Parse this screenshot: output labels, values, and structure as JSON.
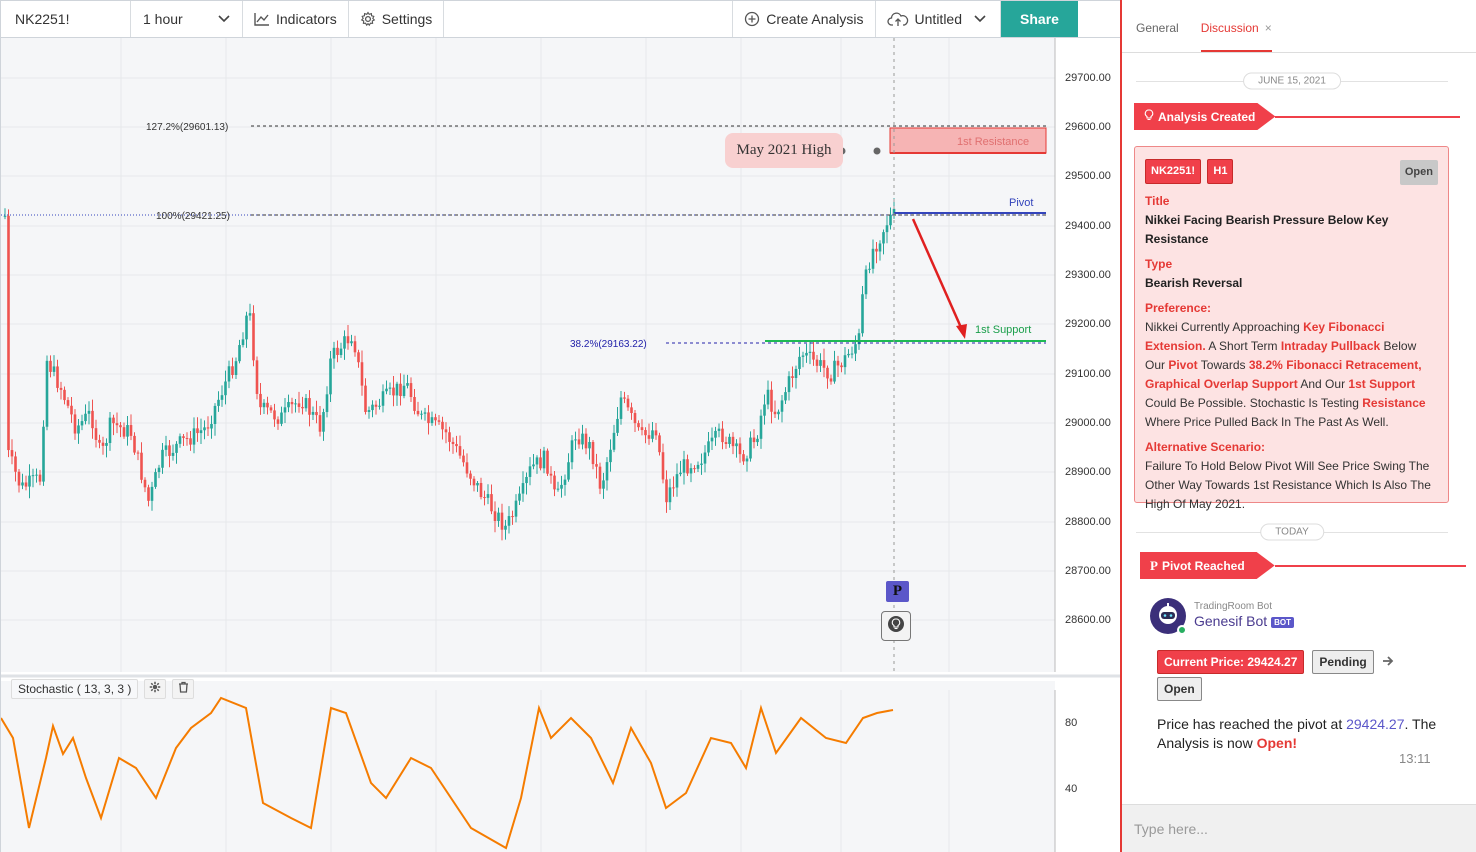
{
  "toolbar": {
    "symbol": "NK2251!",
    "interval": "1 hour",
    "indicators_label": "Indicators",
    "settings_label": "Settings",
    "create_analysis_label": "Create Analysis",
    "layout_name": "Untitled",
    "share_label": "Share"
  },
  "chart": {
    "price_axis": [
      "29700.00",
      "29600.00",
      "29500.00",
      "29400.00",
      "29300.00",
      "29200.00",
      "29100.00",
      "29000.00",
      "28900.00",
      "28800.00",
      "28700.00",
      "28600.00"
    ],
    "stoch_axis": [
      "80",
      "40"
    ],
    "fib_1272_label": "127.2%(29601.13)",
    "fib_100_label": "100%(29421.25)",
    "fib_382_label": "38.2%(29163.22)",
    "resistance_label": "1st Resistance",
    "pivot_label": "Pivot",
    "support_label": "1st Support",
    "may_high_label": "May 2021 High",
    "pivot_marker": "P",
    "indicator_name": "Stochastic ( 13, 3, 3 )",
    "colors": {
      "up": "#26a69a",
      "down": "#ef5350",
      "stoch": "#f57c00",
      "fib": "#2222aa",
      "support": "#1db954",
      "resistance": "#e53935"
    }
  },
  "panel": {
    "tabs": [
      "General",
      "Discussion"
    ],
    "tab_close": "×",
    "date_1": "JUNE 15, 2021",
    "date_2": "TODAY",
    "event_1": "Analysis Created",
    "event_2": "Pivot Reached",
    "card": {
      "symbol": "NK2251!",
      "timeframe": "H1",
      "status": "Open",
      "title_h": "Title",
      "title": "Nikkei Facing Bearish Pressure Below Key Resistance",
      "type_h": "Type",
      "type": "Bearish Reversal",
      "pref_h": "Preference:",
      "pref_1": "Nikkei Currently Approaching ",
      "pref_2": "Key Fibonacci Extension.",
      "pref_3": " A Short Term ",
      "pref_4": "Intraday Pullback",
      "pref_5": " Below Our ",
      "pref_6": "Pivot",
      "pref_7": " Towards ",
      "pref_8": "38.2% Fibonacci Retracement, Graphical Overlap Support",
      "pref_9": " And Our ",
      "pref_10": "1st Support",
      "pref_11": " Could Be Possible. Stochastic Is Testing ",
      "pref_12": "Resistance",
      "pref_13": " Where Price Pulled Back In The Past As Well.",
      "alt_h": "Alternative Scenario:",
      "alt": "Failure To Hold Below Pivot Will See Price Swing The Other Way Towards 1st Resistance Which Is Also The High Of May 2021."
    },
    "bot": {
      "org": "TradingRoom Bot",
      "name": "Genesif Bot",
      "tag": "BOT",
      "current_price": "Current Price: 29424.27",
      "status_pending": "Pending",
      "status_open": "Open",
      "msg_1": "Price has reached the pivot at ",
      "msg_price": "29424.27",
      "msg_2": ". The Analysis is now ",
      "msg_open": "Open!",
      "time": "13:11"
    },
    "input_placeholder": "Type here..."
  }
}
